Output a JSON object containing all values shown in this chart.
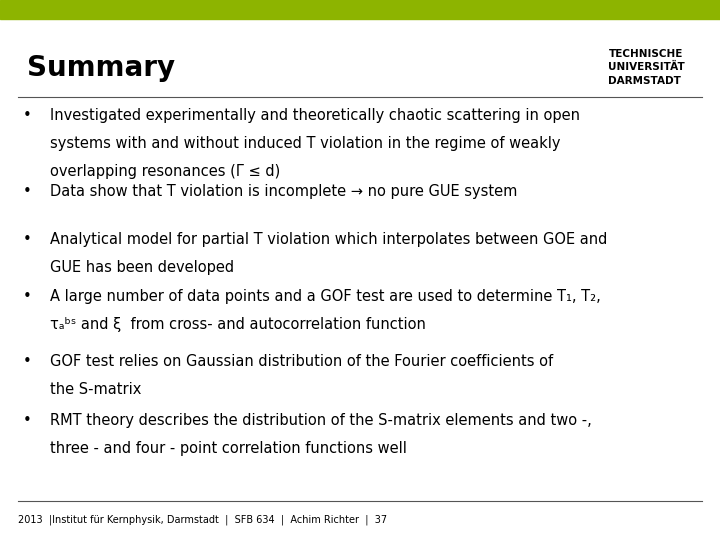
{
  "title": "Summary",
  "title_fontsize": 20,
  "top_bar_color": "#8db400",
  "separator_color": "#555555",
  "separator_lw": 0.8,
  "bg_color": "#ffffff",
  "bullet_fontsize": 10.5,
  "footer_text": "2013  |Institut für Kernphysik, Darmstadt  |  SFB 634  |  Achim Richter  |  37",
  "footer_fontsize": 7.0,
  "tud_text_lines": [
    "TECHNISCHE",
    "UNIVERSITÄT",
    "DARMSTADT"
  ],
  "tud_text_fontsize": 7.5,
  "bullets": [
    "Investigated experimentally and theoretically chaotic scattering in open\nsystems with and without induced T violation in the regime of weakly\noverlapping resonances (Γ ≤ d)",
    "Data show that T violation is incomplete → no pure GUE system",
    "Analytical model for partial T violation which interpolates between GOE and\nGUE has been developed",
    "A large number of data points and a GOF test are used to determine T₁, T₂,\nτₐᵇˢ and ξ  from cross- and autocorrelation function",
    "GOF test relies on Gaussian distribution of the Fourier coefficients of\nthe S-matrix",
    "RMT theory describes the distribution of the S-matrix elements and two -,\nthree - and four - point correlation functions well"
  ]
}
